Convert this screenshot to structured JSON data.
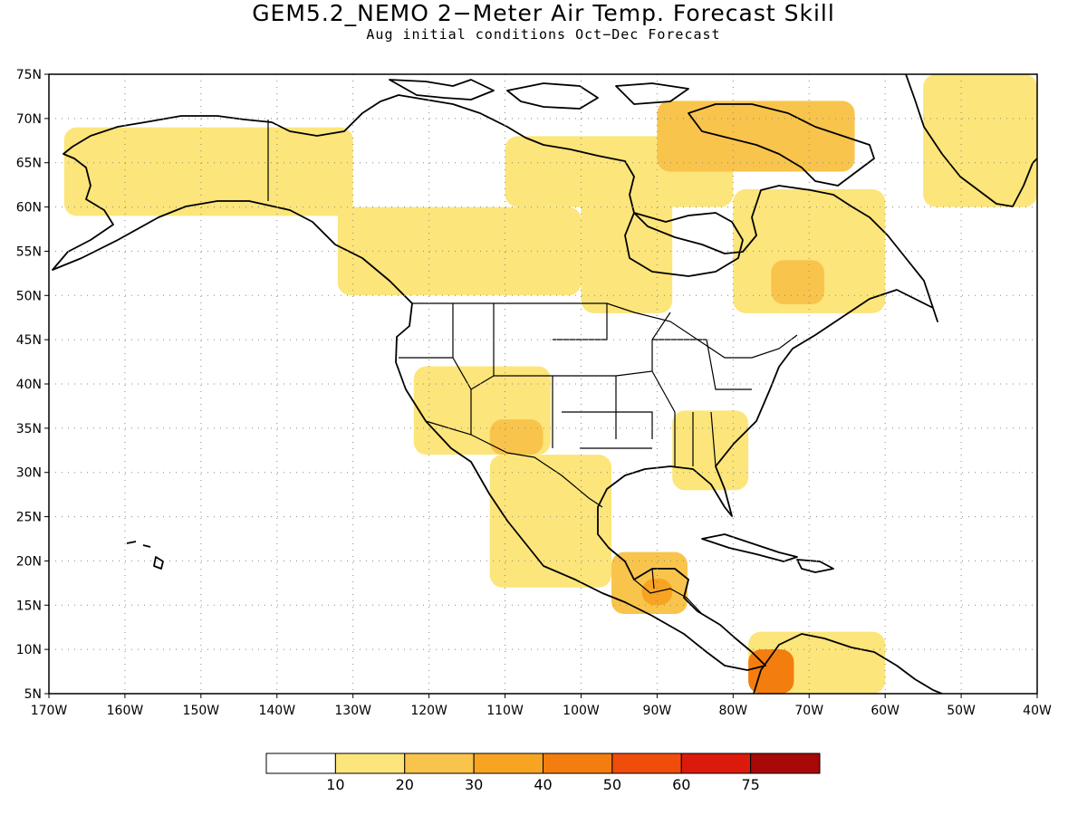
{
  "title": "GEM5.2_NEMO 2−Meter Air Temp. Forecast Skill",
  "subtitle": "Aug initial conditions  Oct−Dec Forecast",
  "lat_labels": [
    "5N",
    "10N",
    "15N",
    "20N",
    "25N",
    "30N",
    "35N",
    "40N",
    "45N",
    "50N",
    "55N",
    "60N",
    "65N",
    "70N",
    "75N"
  ],
  "lon_labels": [
    "170W",
    "160W",
    "150W",
    "140W",
    "130W",
    "120W",
    "110W",
    "100W",
    "90W",
    "80W",
    "70W",
    "60W",
    "50W",
    "40W"
  ],
  "colorbar": {
    "colors": [
      "#ffffff",
      "#fce57a",
      "#f9c44c",
      "#f7a423",
      "#f47d0f",
      "#f04c0c",
      "#dc1a0c",
      "#a80808"
    ],
    "labels": [
      "10",
      "20",
      "30",
      "40",
      "50",
      "60",
      "75"
    ]
  },
  "map_data": {
    "lon_range": [
      -170,
      -40
    ],
    "lat_range": [
      5,
      75
    ],
    "grid": "dotted",
    "regions": [
      {
        "name": "alaska-yukon",
        "lon": [
          -168,
          -130
        ],
        "lat": [
          59,
          69
        ],
        "level": 1
      },
      {
        "name": "western-canada",
        "lon": [
          -132,
          -100
        ],
        "lat": [
          50,
          60
        ],
        "level": 1
      },
      {
        "name": "northern-canada",
        "lon": [
          -110,
          -80
        ],
        "lat": [
          60,
          68
        ],
        "level": 1
      },
      {
        "name": "baffin-island",
        "lon": [
          -90,
          -64
        ],
        "lat": [
          64,
          72
        ],
        "level": 2
      },
      {
        "name": "hudson-bay-west",
        "lon": [
          -100,
          -88
        ],
        "lat": [
          48,
          62
        ],
        "level": 1
      },
      {
        "name": "quebec-labrador",
        "lon": [
          -80,
          -60
        ],
        "lat": [
          48,
          62
        ],
        "level": 1
      },
      {
        "name": "quebec-core",
        "lon": [
          -75,
          -68
        ],
        "lat": [
          49,
          54
        ],
        "level": 2
      },
      {
        "name": "greenland-east",
        "lon": [
          -55,
          -40
        ],
        "lat": [
          60,
          75
        ],
        "level": 1
      },
      {
        "name": "southwest-us",
        "lon": [
          -122,
          -104
        ],
        "lat": [
          32,
          42
        ],
        "level": 1
      },
      {
        "name": "arizona-new-mexico",
        "lon": [
          -112,
          -105
        ],
        "lat": [
          32,
          36
        ],
        "level": 2
      },
      {
        "name": "mexico",
        "lon": [
          -112,
          -96
        ],
        "lat": [
          17,
          32
        ],
        "level": 1
      },
      {
        "name": "southeast-us",
        "lon": [
          -88,
          -78
        ],
        "lat": [
          28,
          37
        ],
        "level": 1
      },
      {
        "name": "central-america",
        "lon": [
          -96,
          -86
        ],
        "lat": [
          14,
          21
        ],
        "level": 2
      },
      {
        "name": "yucatan",
        "lon": [
          -92,
          -88
        ],
        "lat": [
          15,
          18
        ],
        "level": 3
      },
      {
        "name": "colombia-venezuela",
        "lon": [
          -78,
          -60
        ],
        "lat": [
          5,
          12
        ],
        "level": 1
      },
      {
        "name": "colombia-core",
        "lon": [
          -78,
          -72
        ],
        "lat": [
          5,
          10
        ],
        "level": 4
      }
    ]
  }
}
